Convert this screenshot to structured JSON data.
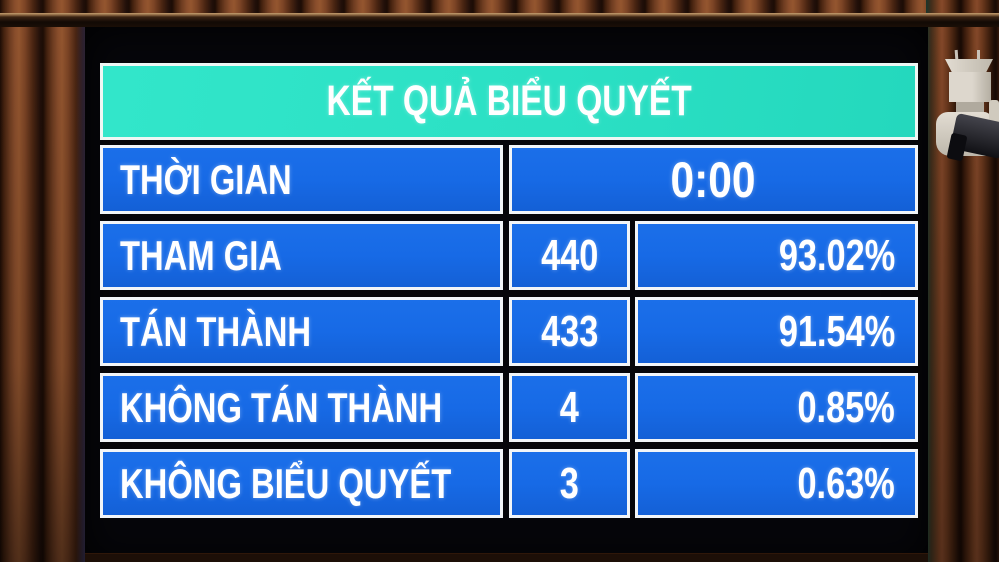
{
  "board": {
    "title": "KẾT QUẢ BIỂU QUYẾT",
    "time": {
      "label": "THỜI GIAN",
      "value": "0:00"
    },
    "results": [
      {
        "label": "THAM GIA",
        "count": "440",
        "percent": "93.02%"
      },
      {
        "label": "TÁN THÀNH",
        "count": "433",
        "percent": "91.54%"
      },
      {
        "label": "KHÔNG TÁN THÀNH",
        "count": "4",
        "percent": "0.85%"
      },
      {
        "label": "KHÔNG BIỂU QUYẾT",
        "count": "3",
        "percent": "0.63%"
      }
    ]
  },
  "colors": {
    "header_teal": "#2ee2c6",
    "row_blue": "#176ae6",
    "screen_black": "#06060a",
    "border_white": "#f2f5f8",
    "text_white": "#ffffff",
    "wood_brown": "#7a4325"
  }
}
